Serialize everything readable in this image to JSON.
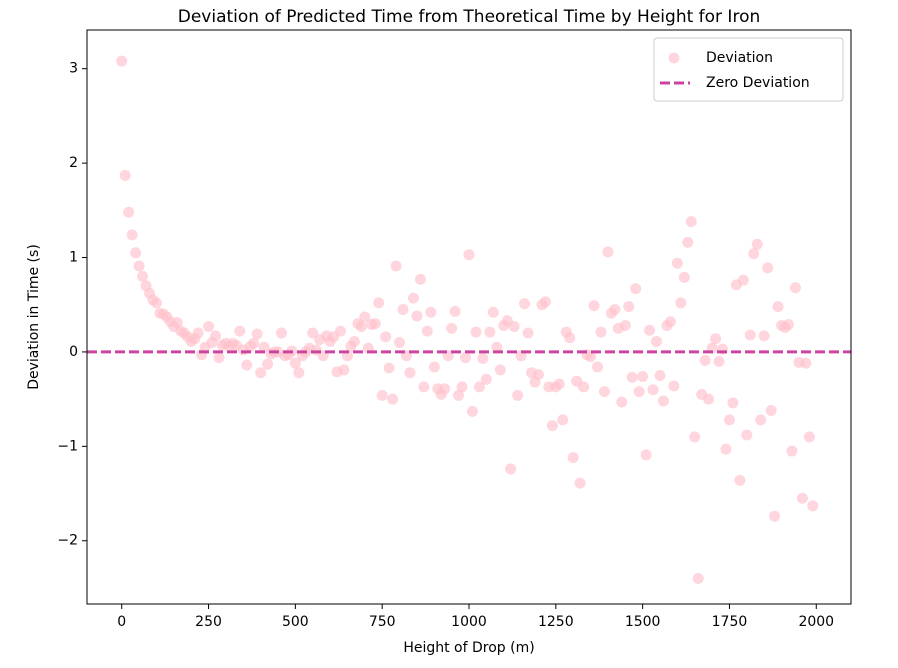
{
  "chart_data": {
    "type": "scatter",
    "title": "Deviation of Predicted Time from Theoretical Time by Height for Iron",
    "xlabel": "Height of Drop (m)",
    "ylabel": "Deviation in Time (s)",
    "xlim": [
      -100,
      2100
    ],
    "ylim": [
      -2.67,
      3.41
    ],
    "xticks": [
      0,
      250,
      500,
      750,
      1000,
      1250,
      1500,
      1750,
      2000
    ],
    "yticks": [
      {
        "value": -2,
        "label": "−2"
      },
      {
        "value": -1,
        "label": "−1"
      },
      0,
      1,
      2,
      3
    ],
    "legend": "upper right",
    "series": [
      {
        "name": "Deviation",
        "color": "#ffc0cb",
        "x": [
          0,
          10,
          20,
          30,
          40,
          50,
          60,
          70,
          80,
          90,
          100,
          110,
          120,
          130,
          140,
          150,
          160,
          170,
          180,
          190,
          200,
          210,
          220,
          230,
          240,
          250,
          260,
          270,
          280,
          290,
          300,
          310,
          320,
          330,
          340,
          350,
          360,
          370,
          380,
          390,
          400,
          410,
          420,
          430,
          440,
          450,
          460,
          470,
          480,
          490,
          500,
          510,
          520,
          530,
          540,
          550,
          560,
          570,
          580,
          590,
          600,
          610,
          620,
          630,
          640,
          650,
          660,
          670,
          680,
          690,
          700,
          710,
          720,
          730,
          740,
          750,
          760,
          770,
          780,
          790,
          800,
          810,
          820,
          830,
          840,
          850,
          860,
          870,
          880,
          890,
          900,
          910,
          920,
          930,
          940,
          950,
          960,
          970,
          980,
          990,
          1000,
          1010,
          1020,
          1030,
          1040,
          1050,
          1060,
          1070,
          1080,
          1090,
          1100,
          1110,
          1120,
          1130,
          1140,
          1150,
          1160,
          1170,
          1180,
          1190,
          1200,
          1210,
          1220,
          1230,
          1240,
          1250,
          1260,
          1270,
          1280,
          1290,
          1300,
          1310,
          1320,
          1330,
          1340,
          1350,
          1360,
          1370,
          1380,
          1390,
          1400,
          1410,
          1420,
          1430,
          1440,
          1450,
          1460,
          1470,
          1480,
          1490,
          1500,
          1510,
          1520,
          1530,
          1540,
          1550,
          1560,
          1570,
          1580,
          1590,
          1600,
          1610,
          1620,
          1630,
          1640,
          1650,
          1660,
          1670,
          1680,
          1690,
          1700,
          1710,
          1720,
          1730,
          1740,
          1750,
          1760,
          1770,
          1780,
          1790,
          1800,
          1810,
          1820,
          1830,
          1840,
          1850,
          1860,
          1870,
          1880,
          1890,
          1900,
          1910,
          1920,
          1930,
          1940,
          1950,
          1960,
          1970,
          1980,
          1990
        ],
        "values": [
          3.08,
          1.87,
          1.48,
          1.24,
          1.05,
          0.91,
          0.8,
          0.7,
          0.62,
          0.55,
          0.52,
          0.41,
          0.4,
          0.37,
          0.32,
          0.27,
          0.31,
          0.22,
          0.2,
          0.16,
          0.11,
          0.14,
          0.2,
          -0.03,
          0.05,
          0.27,
          0.1,
          0.17,
          -0.06,
          0.07,
          0.09,
          0.06,
          0.09,
          0.07,
          0.22,
          0.02,
          -0.14,
          0.06,
          0.09,
          0.19,
          -0.22,
          0.05,
          -0.13,
          -0.02,
          0.0,
          0.0,
          0.2,
          -0.04,
          -0.03,
          0.01,
          -0.12,
          -0.22,
          -0.04,
          0.0,
          0.04,
          0.2,
          0.02,
          0.13,
          -0.04,
          0.17,
          0.11,
          0.16,
          -0.21,
          0.22,
          -0.19,
          -0.04,
          0.06,
          0.11,
          0.3,
          0.27,
          0.37,
          0.04,
          0.29,
          0.3,
          0.52,
          -0.46,
          0.16,
          -0.17,
          -0.5,
          0.91,
          0.1,
          0.45,
          -0.04,
          -0.22,
          0.57,
          0.38,
          0.77,
          -0.37,
          0.22,
          0.42,
          -0.16,
          -0.39,
          -0.45,
          -0.39,
          -0.04,
          0.25,
          0.43,
          -0.46,
          -0.37,
          -0.06,
          1.03,
          -0.63,
          0.21,
          -0.37,
          -0.07,
          -0.29,
          0.21,
          0.42,
          0.05,
          -0.19,
          0.28,
          0.33,
          -1.24,
          0.27,
          -0.46,
          -0.04,
          0.51,
          0.2,
          -0.22,
          -0.32,
          -0.24,
          0.5,
          0.53,
          -0.37,
          -0.78,
          -0.37,
          -0.34,
          -0.72,
          0.21,
          0.15,
          -1.12,
          -0.31,
          -1.39,
          -0.37,
          -0.03,
          -0.05,
          0.49,
          -0.16,
          0.21,
          -0.42,
          1.06,
          0.41,
          0.45,
          0.25,
          -0.53,
          0.28,
          0.48,
          -0.27,
          0.67,
          -0.42,
          -0.26,
          -1.09,
          0.23,
          -0.4,
          0.11,
          -0.25,
          -0.52,
          0.28,
          0.32,
          -0.36,
          0.94,
          0.52,
          0.79,
          1.16,
          1.38,
          -0.9,
          -2.4,
          -0.45,
          -0.09,
          -0.5,
          0.04,
          0.14,
          -0.1,
          0.03,
          -1.03,
          -0.72,
          -0.54,
          0.71,
          -1.36,
          0.76,
          -0.88,
          0.18,
          1.04,
          1.14,
          -0.72,
          0.17,
          0.89,
          -0.62,
          -1.74,
          0.48,
          0.28,
          0.26,
          0.29,
          -1.05,
          0.68,
          -0.11,
          -1.55,
          -0.12,
          -0.9,
          -1.63
        ]
      }
    ],
    "hline": {
      "name": "Zero Deviation",
      "value": 0,
      "color": "#cc44a0"
    }
  }
}
